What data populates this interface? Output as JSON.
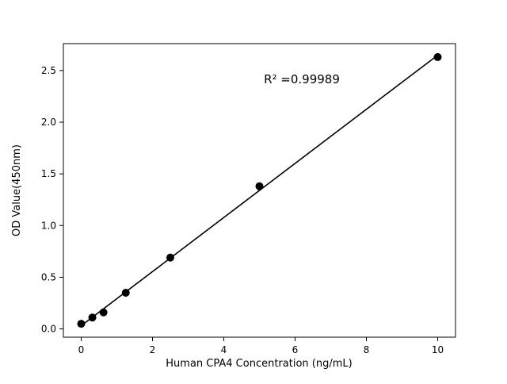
{
  "chart_data": {
    "type": "scatter",
    "x": [
      0,
      0.3125,
      0.625,
      1.25,
      2.5,
      5,
      10
    ],
    "y": [
      0.05,
      0.11,
      0.16,
      0.35,
      0.69,
      1.38,
      2.63
    ],
    "fit_line": true,
    "title": "",
    "xlabel": "Human CPA4 Concentration (ng/mL)",
    "ylabel": "OD Value(450nm)",
    "xlim": [
      -0.5,
      10.5
    ],
    "ylim": [
      -0.08,
      2.76
    ],
    "xticks": [
      0,
      2,
      4,
      6,
      8,
      10
    ],
    "yticks": [
      0.0,
      0.5,
      1.0,
      1.5,
      2.0,
      2.5
    ],
    "annotation": {
      "text": "R² =0.99989",
      "x": 6.2,
      "y": 2.42
    },
    "marker_color": "#000000",
    "line_color": "#000000",
    "axis_color": "#000000",
    "background_color": "#ffffff",
    "grid": false,
    "legend": null
  }
}
